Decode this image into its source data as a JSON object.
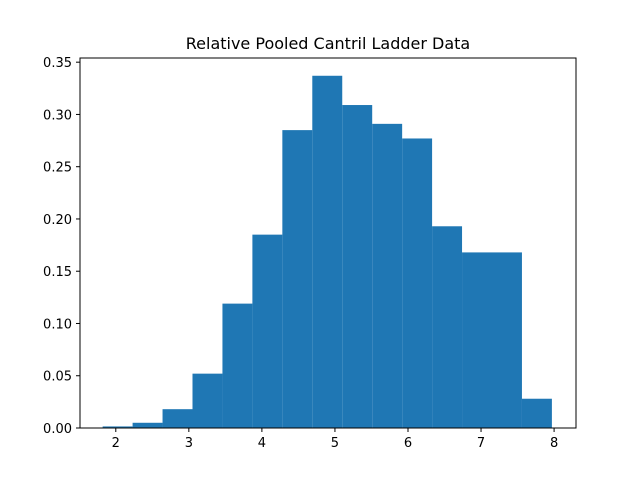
{
  "chart_data": {
    "type": "bar",
    "title": "Relative Pooled Cantril Ladder Data",
    "xlabel": "",
    "ylabel": "",
    "bins": [
      {
        "x0": 1.82,
        "x1": 2.23,
        "value": 0.0015
      },
      {
        "x0": 2.23,
        "x1": 2.64,
        "value": 0.005
      },
      {
        "x0": 2.64,
        "x1": 3.05,
        "value": 0.018
      },
      {
        "x0": 3.05,
        "x1": 3.46,
        "value": 0.052
      },
      {
        "x0": 3.46,
        "x1": 3.87,
        "value": 0.119
      },
      {
        "x0": 3.87,
        "x1": 4.28,
        "value": 0.185
      },
      {
        "x0": 4.28,
        "x1": 4.69,
        "value": 0.285
      },
      {
        "x0": 4.69,
        "x1": 5.1,
        "value": 0.337
      },
      {
        "x0": 5.1,
        "x1": 5.51,
        "value": 0.309
      },
      {
        "x0": 5.51,
        "x1": 5.92,
        "value": 0.291
      },
      {
        "x0": 5.92,
        "x1": 6.33,
        "value": 0.277
      },
      {
        "x0": 6.33,
        "x1": 6.74,
        "value": 0.193
      },
      {
        "x0": 6.74,
        "x1": 7.15,
        "value": 0.168
      },
      {
        "x0": 7.15,
        "x1": 7.56,
        "value": 0.168
      },
      {
        "x0": 7.56,
        "x1": 7.97,
        "value": 0.028
      }
    ],
    "xlim": [
      1.51,
      8.3
    ],
    "ylim": [
      0,
      0.354
    ],
    "xticks": [
      2,
      3,
      4,
      5,
      6,
      7,
      8
    ],
    "xtick_labels": [
      "2",
      "3",
      "4",
      "5",
      "6",
      "7",
      "8"
    ],
    "yticks": [
      0,
      0.05,
      0.1,
      0.15,
      0.2,
      0.25,
      0.3,
      0.35
    ],
    "ytick_labels": [
      "0.00",
      "0.05",
      "0.10",
      "0.15",
      "0.20",
      "0.25",
      "0.30",
      "0.35"
    ],
    "bar_color": "#1f77b4",
    "grid": false,
    "legend": false
  }
}
